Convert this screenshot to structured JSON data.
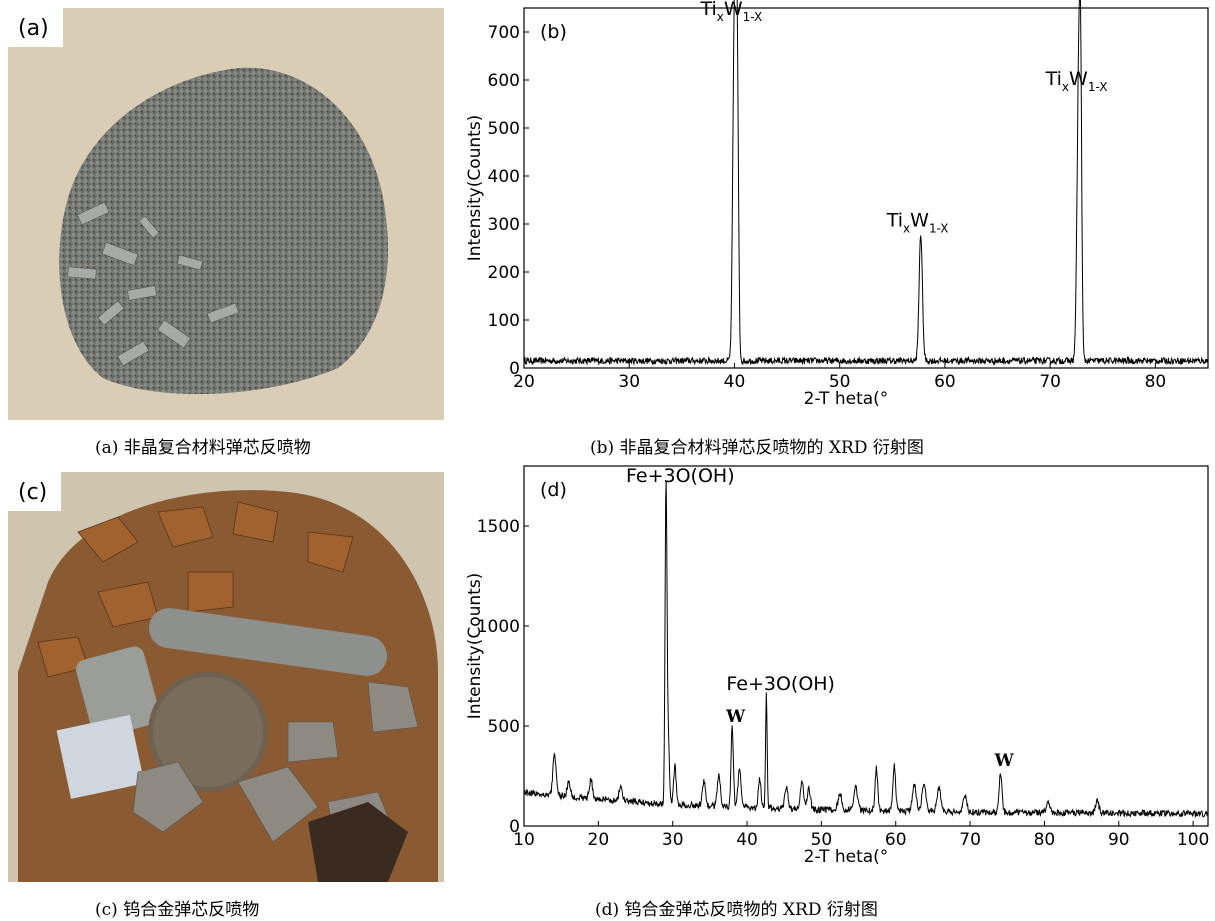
{
  "panels": {
    "a": {
      "label": "(a)",
      "caption": "(a)  非晶复合材料弹芯反喷物"
    },
    "b": {
      "caption": "(b)  非晶复合材料弹芯反喷物的 XRD 衍射图"
    },
    "c": {
      "label": "(c)",
      "caption": "(c)  钨合金弹芯反喷物"
    },
    "d": {
      "caption": "(d)  钨合金弹芯反喷物的 XRD 衍射图"
    }
  },
  "colors": {
    "line": "#000000",
    "background": "#ffffff",
    "photo_a_bg": "#d9cdb5",
    "photo_c_bg": "#cfc4ae"
  },
  "chart_data": [
    {
      "type": "line",
      "panel_label": "(b)",
      "xlabel": "2-T heta(°",
      "ylabel": "Intensity(Counts)",
      "xlim": [
        20,
        85
      ],
      "ylim": [
        0,
        750
      ],
      "xticks": [
        20,
        30,
        40,
        50,
        60,
        70,
        80
      ],
      "yticks": [
        0,
        100,
        200,
        300,
        400,
        500,
        600,
        700
      ],
      "baseline": 15,
      "peaks": [
        {
          "x": 40.0,
          "y": 720,
          "width": 0.22
        },
        {
          "x": 40.25,
          "y": 600,
          "width": 0.18
        },
        {
          "x": 57.7,
          "y": 280,
          "width": 0.22
        },
        {
          "x": 72.7,
          "y": 575,
          "width": 0.22
        },
        {
          "x": 72.9,
          "y": 480,
          "width": 0.16
        }
      ],
      "annotations": [
        {
          "text_main1": "Ti",
          "sub1": "x",
          "text_main2": "W",
          "sub2": "1-X",
          "x": 40.0,
          "y": 735
        },
        {
          "text_main1": "Ti",
          "sub1": "x",
          "text_main2": "W",
          "sub2": "1-X",
          "x": 57.7,
          "y": 295
        },
        {
          "text_main1": "Ti",
          "sub1": "x",
          "text_main2": "W",
          "sub2": "1-X",
          "x": 72.8,
          "y": 590
        }
      ]
    },
    {
      "type": "line",
      "panel_label": "(d)",
      "xlabel": "2-T heta(°",
      "ylabel": "Intensity(Counts)",
      "xlim": [
        10,
        102
      ],
      "ylim": [
        0,
        1800
      ],
      "xticks": [
        10,
        20,
        30,
        40,
        50,
        60,
        70,
        80,
        90,
        100
      ],
      "yticks": [
        0,
        500,
        1000,
        1500
      ],
      "baseline": 120,
      "peaks": [
        {
          "x": 14.1,
          "y": 360,
          "width": 0.3
        },
        {
          "x": 16.0,
          "y": 220,
          "width": 0.3
        },
        {
          "x": 19.0,
          "y": 230,
          "width": 0.3
        },
        {
          "x": 23.0,
          "y": 200,
          "width": 0.3
        },
        {
          "x": 29.1,
          "y": 1700,
          "width": 0.18
        },
        {
          "x": 29.4,
          "y": 460,
          "width": 0.2
        },
        {
          "x": 30.3,
          "y": 300,
          "width": 0.25
        },
        {
          "x": 34.2,
          "y": 220,
          "width": 0.3
        },
        {
          "x": 36.2,
          "y": 260,
          "width": 0.3
        },
        {
          "x": 38.0,
          "y": 490,
          "width": 0.22
        },
        {
          "x": 39.0,
          "y": 280,
          "width": 0.3
        },
        {
          "x": 41.7,
          "y": 230,
          "width": 0.25
        },
        {
          "x": 42.6,
          "y": 660,
          "width": 0.15
        },
        {
          "x": 45.3,
          "y": 200,
          "width": 0.3
        },
        {
          "x": 47.4,
          "y": 220,
          "width": 0.3
        },
        {
          "x": 48.3,
          "y": 190,
          "width": 0.3
        },
        {
          "x": 52.5,
          "y": 160,
          "width": 0.35
        },
        {
          "x": 54.6,
          "y": 200,
          "width": 0.35
        },
        {
          "x": 57.4,
          "y": 290,
          "width": 0.25
        },
        {
          "x": 59.8,
          "y": 300,
          "width": 0.25
        },
        {
          "x": 62.5,
          "y": 210,
          "width": 0.35
        },
        {
          "x": 63.8,
          "y": 220,
          "width": 0.35
        },
        {
          "x": 65.8,
          "y": 190,
          "width": 0.35
        },
        {
          "x": 69.3,
          "y": 150,
          "width": 0.35
        },
        {
          "x": 74.1,
          "y": 270,
          "width": 0.25
        },
        {
          "x": 80.5,
          "y": 110,
          "width": 0.35
        },
        {
          "x": 87.1,
          "y": 130,
          "width": 0.3
        }
      ],
      "annotations": [
        {
          "text": "Fe+3O(OH)",
          "x": 29.1,
          "y": 1720,
          "style": "sans"
        },
        {
          "text": "Fe+3O(OH)",
          "x": 42.6,
          "y": 680,
          "style": "sans"
        },
        {
          "text": "W",
          "x": 38.0,
          "y": 520,
          "style": "serif"
        },
        {
          "text": "W",
          "x": 74.1,
          "y": 300,
          "style": "serif"
        }
      ]
    }
  ]
}
